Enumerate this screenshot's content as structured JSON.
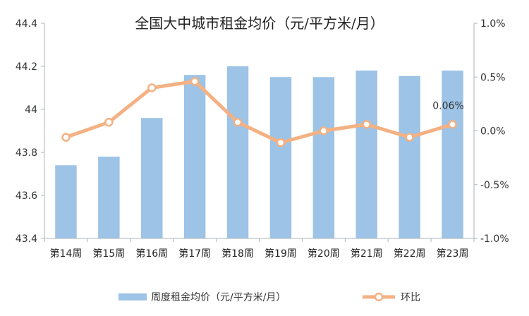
{
  "chart_data": {
    "type": "bar",
    "title": "全国大中城市租金均价（元/平方米/月）",
    "categories": [
      "第14周",
      "第15周",
      "第16周",
      "第17周",
      "第18周",
      "第19周",
      "第20周",
      "第21周",
      "第22周",
      "第23周"
    ],
    "series": [
      {
        "name": "周度租金均价（元/平方米/月）",
        "type": "bar",
        "axis": "left",
        "color": "#9dc3e6",
        "values": [
          43.74,
          43.78,
          43.96,
          44.16,
          44.2,
          44.15,
          44.15,
          44.18,
          44.155,
          44.18
        ]
      },
      {
        "name": "环比",
        "type": "line",
        "axis": "right",
        "color": "#f4b183",
        "values": [
          -0.06,
          0.08,
          0.4,
          0.46,
          0.08,
          -0.11,
          -0.0,
          0.06,
          -0.06,
          0.06
        ]
      }
    ],
    "y_left": {
      "ylim": [
        43.4,
        44.4
      ],
      "ticks": [
        43.4,
        43.6,
        43.8,
        44,
        44.2,
        44.4
      ],
      "tick_labels": [
        "43.4",
        "43.6",
        "43.8",
        "44",
        "44.2",
        "44.4"
      ]
    },
    "y_right": {
      "ylim": [
        -1.0,
        1.0
      ],
      "ticks": [
        -1.0,
        -0.5,
        0.0,
        0.5,
        1.0
      ],
      "tick_labels": [
        "-1.0%",
        "-0.5%",
        "0.0%",
        "0.5%",
        "1.0%"
      ]
    },
    "annotations": [
      {
        "text": "0.06%",
        "category": "第23周",
        "series": "环比"
      }
    ],
    "grid": false,
    "legend_position": "bottom"
  }
}
